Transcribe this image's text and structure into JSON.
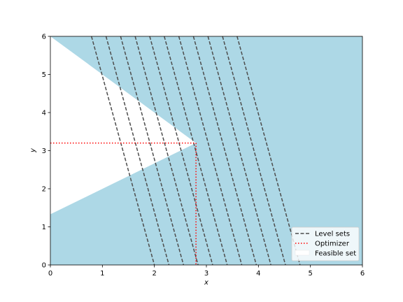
{
  "chart_data": {
    "type": "line",
    "xlabel": "x",
    "ylabel": "y",
    "xlim": [
      0,
      6
    ],
    "ylim": [
      0,
      6
    ],
    "xticks": [
      "0",
      "1",
      "2",
      "3",
      "4",
      "5",
      "6"
    ],
    "yticks": [
      "0",
      "1",
      "2",
      "3",
      "4",
      "5",
      "6"
    ],
    "grid": false,
    "legend_position": "bottom-right",
    "colors": {
      "infeasible_fill": "#add8e6",
      "feasible_fill": "#ffffff",
      "level_sets": "#4d4d4d",
      "optimizer": "#ff0000"
    },
    "feasible_set": {
      "name": "Feasible set",
      "polygon": [
        [
          0,
          6
        ],
        [
          2.8,
          3.2
        ],
        [
          0,
          1.33
        ]
      ]
    },
    "level_sets": {
      "name": "Level sets",
      "lines": [
        {
          "x_top": 0.79,
          "x_bottom": 2.0
        },
        {
          "x_top": 1.07,
          "x_bottom": 2.28
        },
        {
          "x_top": 1.35,
          "x_bottom": 2.56
        },
        {
          "x_top": 1.63,
          "x_bottom": 2.84
        },
        {
          "x_top": 1.91,
          "x_bottom": 3.12
        },
        {
          "x_top": 2.19,
          "x_bottom": 3.4
        },
        {
          "x_top": 2.47,
          "x_bottom": 3.68
        },
        {
          "x_top": 2.75,
          "x_bottom": 3.96
        },
        {
          "x_top": 3.03,
          "x_bottom": 4.24
        },
        {
          "x_top": 3.31,
          "x_bottom": 4.52
        },
        {
          "x_top": 3.59,
          "x_bottom": 4.8
        }
      ]
    },
    "optimizer": {
      "name": "Optimizer",
      "x": 2.8,
      "y": 3.2
    }
  }
}
